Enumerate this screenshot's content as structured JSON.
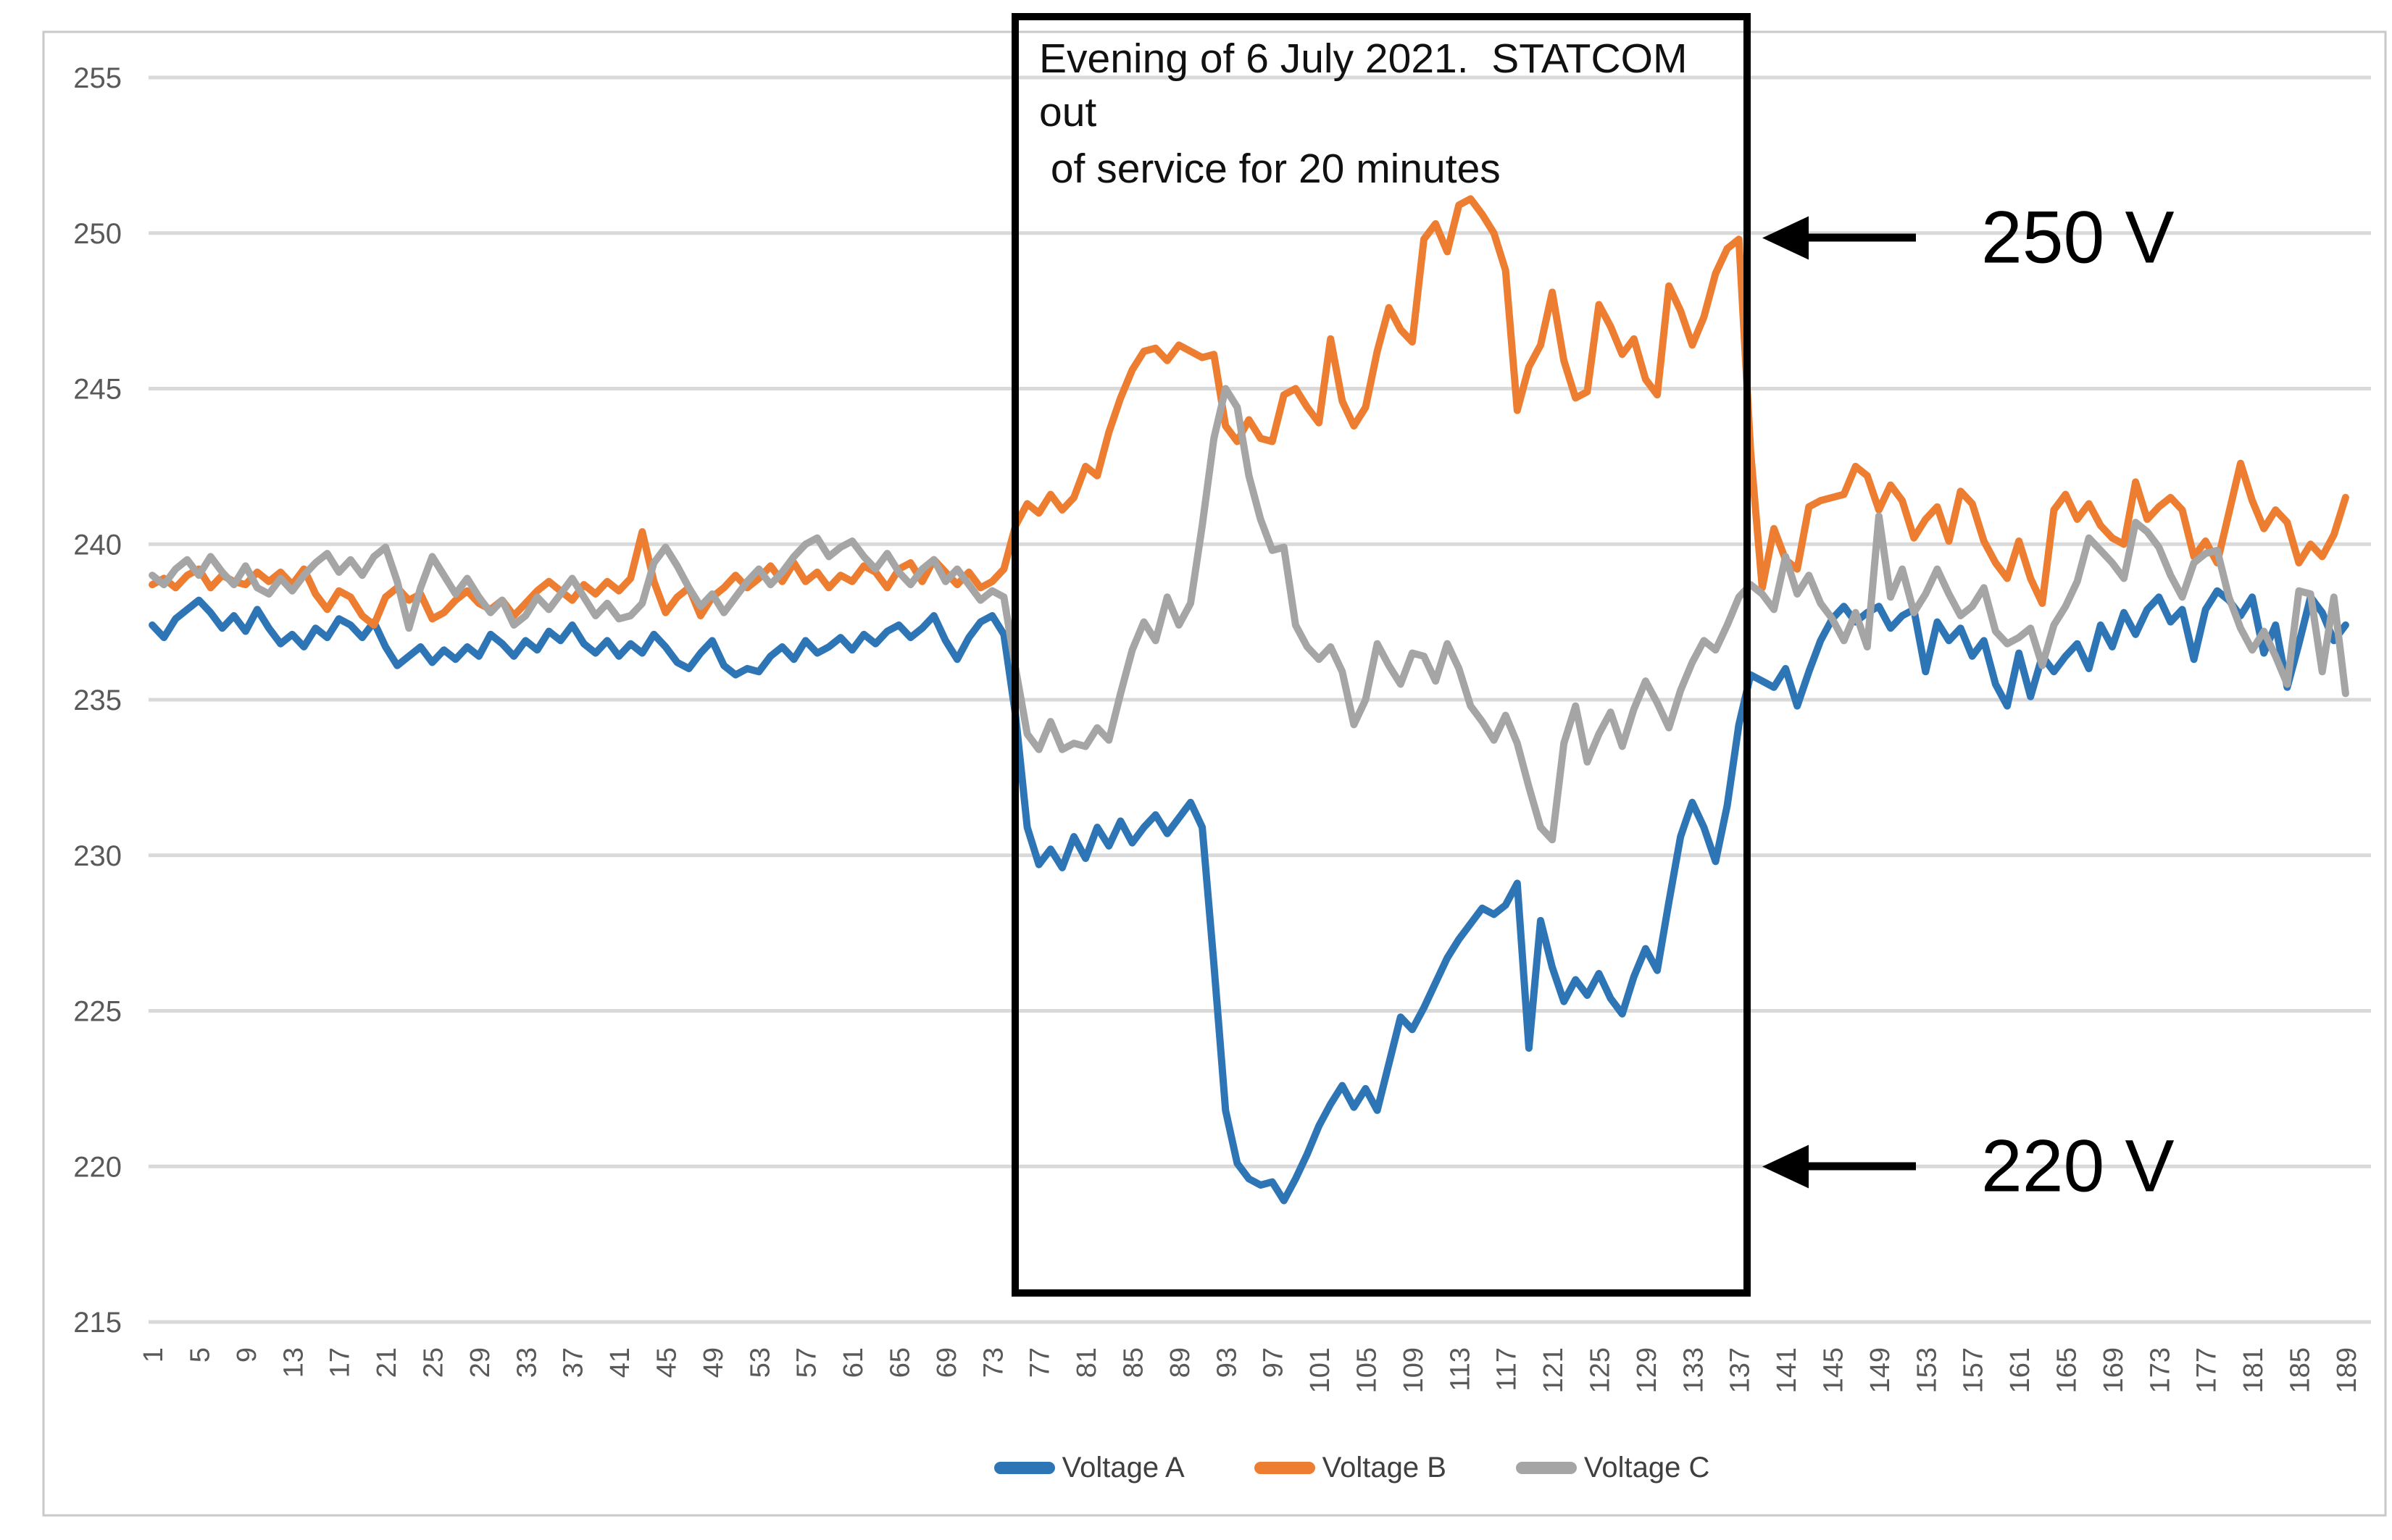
{
  "figure": {
    "annotation_box": {
      "lines": [
        "Evening of 6 July 2021.  STATCOM out",
        " of service for 20 minutes"
      ]
    },
    "callouts": [
      {
        "label": "250 V",
        "value": 250
      },
      {
        "label": "220 V",
        "value": 220
      }
    ]
  },
  "chart_data": {
    "type": "line",
    "title": "",
    "xlabel": "",
    "ylabel": "",
    "grid": true,
    "legend_position": "bottom",
    "ylim": [
      215,
      255
    ],
    "x_range": [
      1,
      189
    ],
    "y_ticks": [
      255,
      250,
      245,
      240,
      235,
      230,
      225,
      220,
      215
    ],
    "x_tick_labels": [
      1,
      5,
      9,
      13,
      17,
      21,
      25,
      29,
      33,
      37,
      41,
      45,
      49,
      53,
      57,
      61,
      65,
      69,
      73,
      77,
      81,
      85,
      89,
      93,
      97,
      101,
      105,
      109,
      113,
      117,
      121,
      125,
      129,
      133,
      137,
      141,
      145,
      149,
      153,
      157,
      161,
      165,
      169,
      173,
      177,
      181,
      185,
      189
    ],
    "style": {
      "axis_label_color": "#595959",
      "gridline_color": "#D9D9D9",
      "frame_color": "#C9C9C9",
      "annotation_border_color": "#000000"
    },
    "annotations": {
      "event_box_category_range": [
        75,
        138
      ],
      "event_text": "Evening of 6 July 2021.  STATCOM out of service for 20 minutes",
      "arrows": [
        {
          "label": "250 V",
          "points_to_value": 250
        },
        {
          "label": "220 V",
          "points_to_value": 220
        }
      ]
    },
    "series": [
      {
        "name": "Voltage A",
        "color": "#2E75B6",
        "values": [
          237.4,
          237.0,
          237.6,
          237.9,
          238.2,
          237.8,
          237.3,
          237.7,
          237.2,
          237.9,
          237.3,
          236.8,
          237.1,
          236.7,
          237.3,
          237.0,
          237.6,
          237.4,
          237.0,
          237.5,
          236.7,
          236.1,
          236.4,
          236.7,
          236.2,
          236.6,
          236.3,
          236.7,
          236.4,
          237.1,
          236.8,
          236.4,
          236.9,
          236.6,
          237.2,
          236.9,
          237.4,
          236.8,
          236.5,
          236.9,
          236.4,
          236.8,
          236.5,
          237.1,
          236.7,
          236.2,
          236.0,
          236.5,
          236.9,
          236.1,
          235.8,
          236.0,
          235.9,
          236.4,
          236.7,
          236.3,
          236.9,
          236.5,
          236.7,
          237.0,
          236.6,
          237.1,
          236.8,
          237.2,
          237.4,
          237.0,
          237.3,
          237.7,
          236.9,
          236.3,
          237.0,
          237.5,
          237.7,
          237.1,
          234.5,
          230.9,
          229.7,
          230.2,
          229.6,
          230.6,
          229.9,
          230.9,
          230.3,
          231.1,
          230.4,
          230.9,
          231.3,
          230.7,
          231.2,
          231.7,
          230.9,
          226.5,
          221.8,
          220.1,
          219.6,
          219.4,
          219.5,
          218.9,
          219.6,
          220.4,
          221.3,
          222.0,
          222.6,
          221.9,
          222.5,
          221.8,
          223.3,
          224.8,
          224.4,
          225.1,
          225.9,
          226.7,
          227.3,
          227.8,
          228.3,
          228.1,
          228.4,
          229.1,
          223.8,
          227.9,
          226.4,
          225.3,
          226.0,
          225.5,
          226.2,
          225.4,
          224.9,
          226.1,
          227.0,
          226.3,
          228.5,
          230.6,
          231.7,
          230.9,
          229.8,
          231.6,
          234.2,
          235.8,
          235.6,
          235.4,
          236.0,
          234.8,
          235.9,
          236.9,
          237.6,
          238.0,
          237.5,
          237.8,
          238.0,
          237.3,
          237.7,
          237.9,
          235.9,
          237.5,
          236.9,
          237.3,
          236.4,
          236.9,
          235.5,
          234.8,
          236.5,
          235.1,
          236.4,
          235.9,
          236.4,
          236.8,
          236.0,
          237.4,
          236.7,
          237.8,
          237.1,
          237.9,
          238.3,
          237.5,
          237.9,
          236.3,
          237.9,
          238.5,
          238.2,
          237.7,
          238.3,
          236.5,
          237.4,
          235.4,
          236.8,
          238.3,
          237.8,
          236.9,
          237.4
        ]
      },
      {
        "name": "Voltage B",
        "color": "#ED7D31",
        "values": [
          238.7,
          238.9,
          238.6,
          239.0,
          239.2,
          238.6,
          239.0,
          238.8,
          238.7,
          239.1,
          238.8,
          239.1,
          238.7,
          239.2,
          238.4,
          237.9,
          238.5,
          238.3,
          237.7,
          237.4,
          238.3,
          238.6,
          238.2,
          238.4,
          237.6,
          237.8,
          238.2,
          238.5,
          238.1,
          237.9,
          238.2,
          237.7,
          238.1,
          238.5,
          238.8,
          238.5,
          238.2,
          238.7,
          238.4,
          238.8,
          238.5,
          238.9,
          240.4,
          238.8,
          237.8,
          238.3,
          238.6,
          237.7,
          238.3,
          238.6,
          239.0,
          238.6,
          238.9,
          239.3,
          238.8,
          239.4,
          238.8,
          239.1,
          238.6,
          239.0,
          238.8,
          239.3,
          239.1,
          238.6,
          239.2,
          239.4,
          238.8,
          239.5,
          239.1,
          238.7,
          239.1,
          238.6,
          238.8,
          239.2,
          240.6,
          241.3,
          241.0,
          241.6,
          241.1,
          241.5,
          242.5,
          242.2,
          243.6,
          244.7,
          245.6,
          246.2,
          246.3,
          245.9,
          246.4,
          246.2,
          246.0,
          246.1,
          243.8,
          243.3,
          244.0,
          243.4,
          243.3,
          244.8,
          245.0,
          244.4,
          243.9,
          246.6,
          244.6,
          243.8,
          244.4,
          246.2,
          247.6,
          246.9,
          246.5,
          249.8,
          250.3,
          249.4,
          250.9,
          251.1,
          250.6,
          250.0,
          248.8,
          244.3,
          245.7,
          246.4,
          248.1,
          245.9,
          244.7,
          244.9,
          247.7,
          247.0,
          246.1,
          246.6,
          245.3,
          244.8,
          248.3,
          247.5,
          246.4,
          247.3,
          248.7,
          249.5,
          249.8,
          243.0,
          238.6,
          240.5,
          239.5,
          239.2,
          241.2,
          241.4,
          241.5,
          241.6,
          242.5,
          242.2,
          241.1,
          241.9,
          241.4,
          240.2,
          240.8,
          241.2,
          240.1,
          241.7,
          241.3,
          240.1,
          239.4,
          238.9,
          240.1,
          238.9,
          238.1,
          241.1,
          241.6,
          240.8,
          241.3,
          240.6,
          240.2,
          240.0,
          242.0,
          240.8,
          241.2,
          241.5,
          241.1,
          239.6,
          240.1,
          239.4,
          241.0,
          242.6,
          241.4,
          240.5,
          241.1,
          240.7,
          239.4,
          240.0,
          239.6,
          240.3,
          241.5
        ]
      },
      {
        "name": "Voltage C",
        "color": "#A5A5A5",
        "values": [
          239.0,
          238.7,
          239.2,
          239.5,
          239.0,
          239.6,
          239.1,
          238.7,
          239.3,
          238.6,
          238.4,
          238.9,
          238.5,
          239.0,
          239.4,
          239.7,
          239.1,
          239.5,
          239.0,
          239.6,
          239.9,
          238.8,
          237.3,
          238.6,
          239.6,
          239.0,
          238.4,
          238.9,
          238.3,
          237.8,
          238.2,
          237.4,
          237.7,
          238.3,
          237.9,
          238.4,
          238.9,
          238.3,
          237.7,
          238.1,
          237.6,
          237.7,
          238.1,
          239.4,
          239.9,
          239.3,
          238.6,
          238.0,
          238.4,
          237.8,
          238.3,
          238.8,
          239.2,
          238.7,
          239.1,
          239.6,
          240.0,
          240.2,
          239.6,
          239.9,
          240.1,
          239.6,
          239.2,
          239.7,
          239.1,
          238.7,
          239.2,
          239.5,
          238.8,
          239.2,
          238.7,
          238.2,
          238.5,
          238.3,
          236.0,
          233.9,
          233.4,
          234.3,
          233.4,
          233.6,
          233.5,
          234.1,
          233.7,
          235.2,
          236.6,
          237.5,
          236.9,
          238.3,
          237.4,
          238.1,
          240.6,
          243.4,
          245.0,
          244.4,
          242.2,
          240.8,
          239.8,
          239.9,
          237.4,
          236.7,
          236.3,
          236.7,
          235.9,
          234.2,
          235.0,
          236.8,
          236.1,
          235.5,
          236.5,
          236.4,
          235.6,
          236.8,
          236.0,
          234.8,
          234.3,
          233.7,
          234.5,
          233.6,
          232.2,
          230.9,
          230.5,
          233.6,
          234.8,
          233.0,
          233.9,
          234.6,
          233.5,
          234.7,
          235.6,
          234.9,
          234.1,
          235.3,
          236.2,
          236.9,
          236.6,
          237.4,
          238.3,
          238.7,
          238.4,
          237.9,
          239.6,
          238.4,
          239.0,
          238.1,
          237.6,
          236.9,
          237.8,
          236.7,
          240.9,
          238.3,
          239.2,
          237.8,
          238.4,
          239.2,
          238.4,
          237.7,
          238.0,
          238.6,
          237.2,
          236.8,
          237.0,
          237.3,
          236.1,
          237.4,
          238.0,
          238.8,
          240.2,
          239.8,
          239.4,
          238.9,
          240.7,
          240.4,
          239.9,
          239.0,
          238.3,
          239.4,
          239.7,
          239.8,
          238.3,
          237.3,
          236.6,
          237.2,
          236.4,
          235.5,
          238.5,
          238.4,
          235.9,
          238.3,
          235.2
        ]
      }
    ]
  }
}
